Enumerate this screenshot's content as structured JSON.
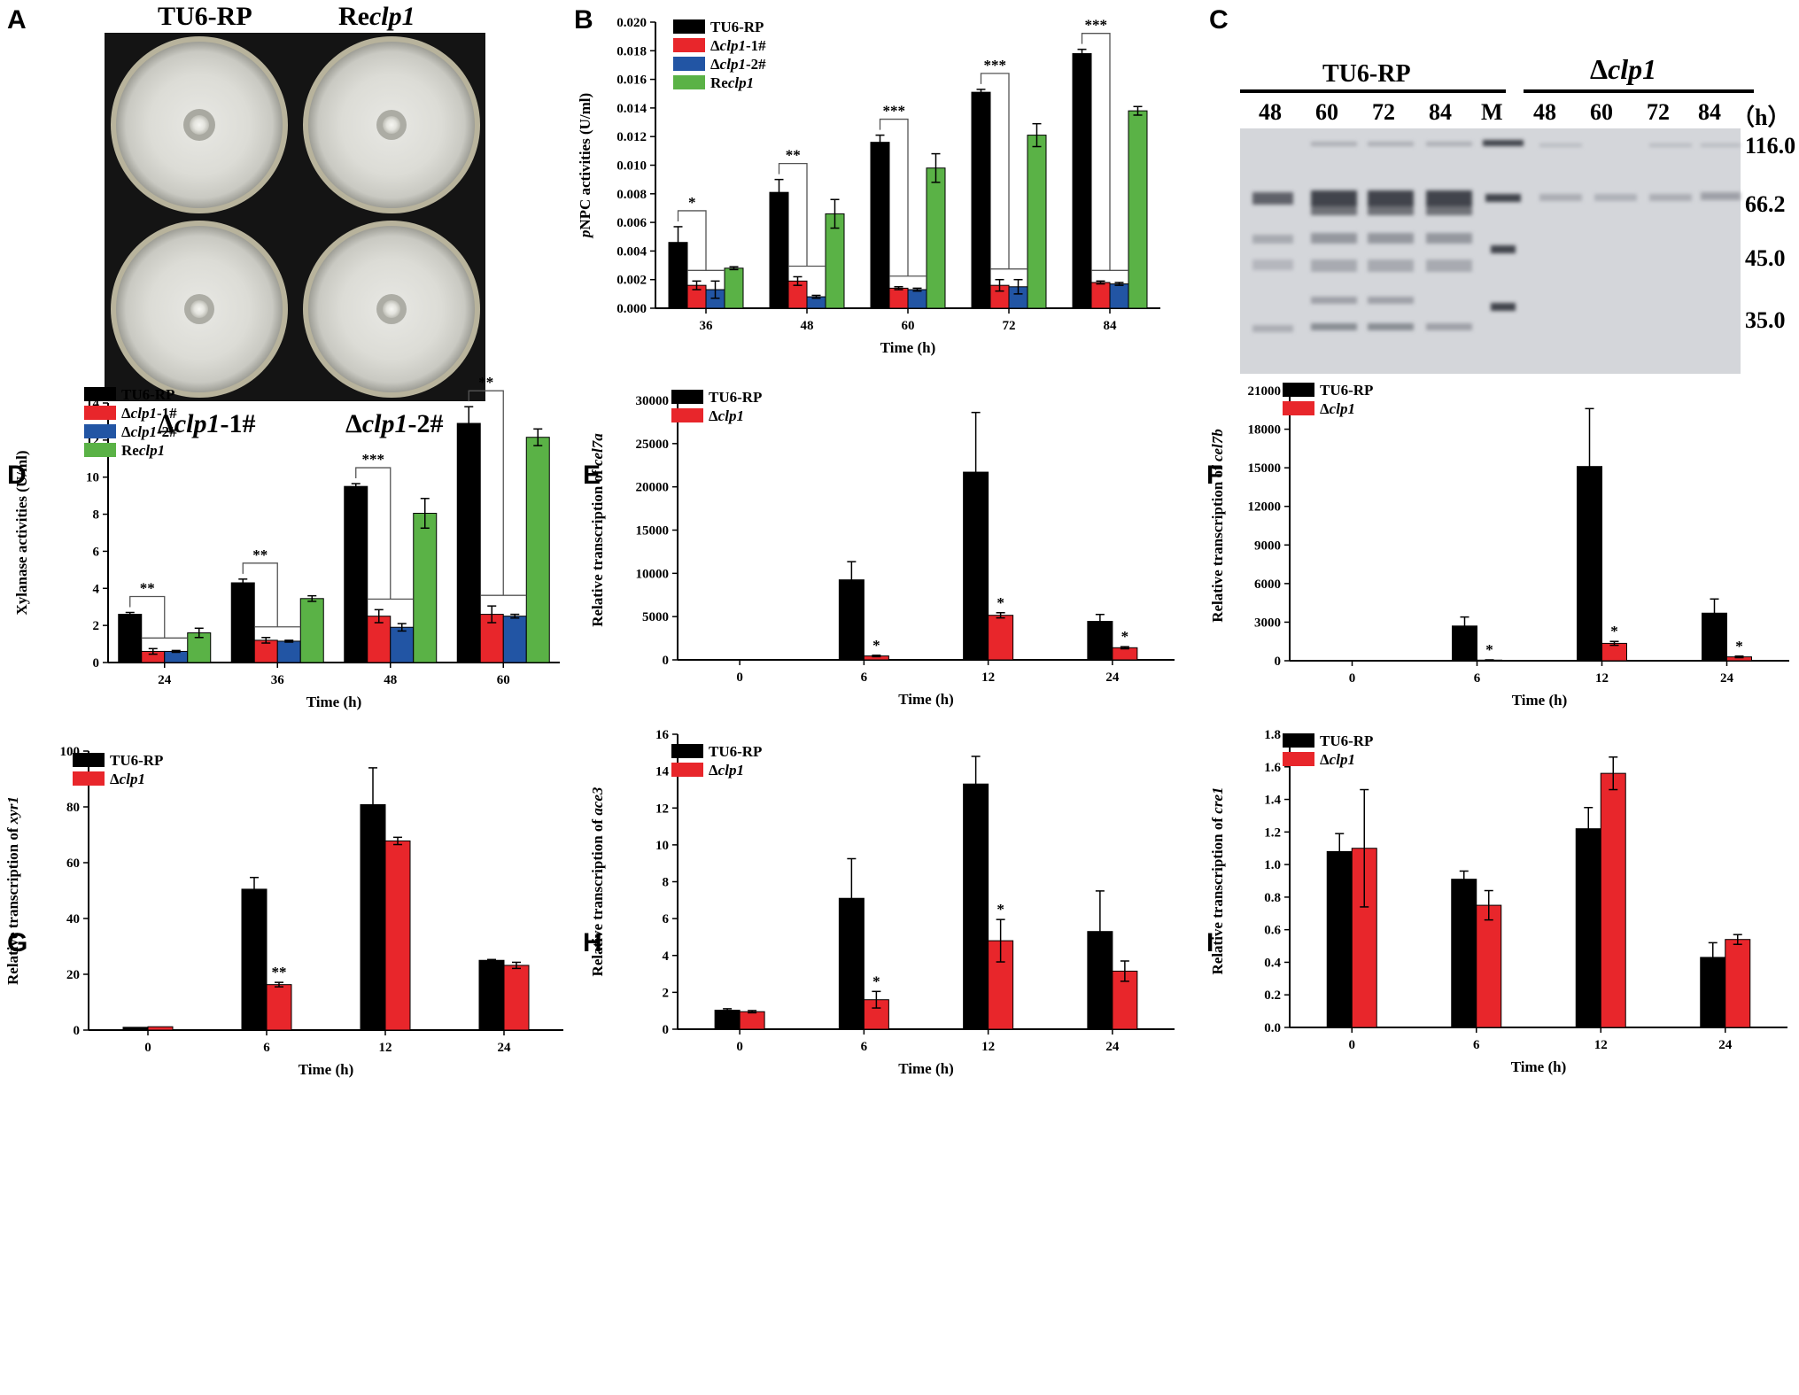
{
  "figure": {
    "panel_letters": [
      "A",
      "B",
      "C",
      "D",
      "E",
      "F",
      "G",
      "H",
      "I"
    ]
  },
  "panel_a": {
    "labels": {
      "top_left": "TU6-RP",
      "top_right_prefix": "Re",
      "top_right_gene": "clp1",
      "bottom_left_prefix": "Δ",
      "bottom_left_gene": "clp1",
      "bottom_left_suffix": "-1#",
      "bottom_right_prefix": "Δ",
      "bottom_right_gene": "clp1",
      "bottom_right_suffix": "-2#"
    }
  },
  "panel_c": {
    "group_left": "TU6-RP",
    "group_right_prefix": "Δ",
    "group_right_gene": "clp1",
    "lanes": [
      "48",
      "60",
      "72",
      "84",
      "M",
      "48",
      "60",
      "72",
      "84"
    ],
    "time_unit": "（h）",
    "markers": [
      "116.0",
      "66.2",
      "45.0",
      "35.0"
    ]
  },
  "colors": {
    "TU6-RP": "#000000",
    "clp1_1": "#e8262b",
    "clp1_2": "#2255a4",
    "reclp1": "#5ab246",
    "dclp1": "#e8262b"
  },
  "chart_data": [
    {
      "panel": "B",
      "type": "bar",
      "categories": [
        "36",
        "48",
        "60",
        "72",
        "84"
      ],
      "xlabel": "Time (h)",
      "ylabel": "pNPC activities (U/ml)",
      "ylim": [
        0,
        0.02
      ],
      "yticks": [
        "0.000",
        "0.002",
        "0.004",
        "0.006",
        "0.008",
        "0.010",
        "0.012",
        "0.014",
        "0.016",
        "0.018",
        "0.020"
      ],
      "series": [
        {
          "name": "TU6-RP",
          "values": [
            0.0046,
            0.0081,
            0.0116,
            0.0151,
            0.0178
          ],
          "err": [
            0.0011,
            0.0009,
            0.0005,
            0.0002,
            0.0003
          ]
        },
        {
          "name": "Δclp1-1#",
          "values": [
            0.0016,
            0.0019,
            0.0014,
            0.0016,
            0.0018
          ],
          "err": [
            0.0003,
            0.0003,
            0.0001,
            0.0004,
            0.0001
          ]
        },
        {
          "name": "Δclp1-2#",
          "values": [
            0.0013,
            0.0008,
            0.0013,
            0.0015,
            0.0017
          ],
          "err": [
            0.0006,
            0.0001,
            0.0001,
            0.0005,
            0.0001
          ]
        },
        {
          "name": "Reclp1",
          "values": [
            0.0028,
            0.0066,
            0.0098,
            0.0121,
            0.0138
          ],
          "err": [
            0.0001,
            0.001,
            0.001,
            0.0008,
            0.0003
          ]
        }
      ],
      "significance": [
        "*",
        "**",
        "***",
        "***",
        "***"
      ],
      "legend": "top-left"
    },
    {
      "panel": "D",
      "type": "bar",
      "categories": [
        "24",
        "36",
        "48",
        "60"
      ],
      "xlabel": "Time (h)",
      "ylabel": "Xylanase activities (U/ml)",
      "ylim": [
        0,
        14
      ],
      "yticks": [
        "0",
        "2",
        "4",
        "6",
        "8",
        "10",
        "12",
        "14"
      ],
      "series": [
        {
          "name": "TU6-RP",
          "values": [
            2.6,
            4.3,
            9.5,
            12.9
          ],
          "err": [
            0.1,
            0.2,
            0.15,
            0.9
          ]
        },
        {
          "name": "Δclp1-1#",
          "values": [
            0.6,
            1.2,
            2.5,
            2.6
          ],
          "err": [
            0.15,
            0.15,
            0.35,
            0.45
          ]
        },
        {
          "name": "Δclp1-2#",
          "values": [
            0.6,
            1.15,
            1.9,
            2.5
          ],
          "err": [
            0.05,
            0.05,
            0.2,
            0.1
          ]
        },
        {
          "name": "Reclp1",
          "values": [
            1.6,
            3.45,
            8.05,
            12.15
          ],
          "err": [
            0.25,
            0.15,
            0.8,
            0.45
          ]
        }
      ],
      "significance": [
        "**",
        "**",
        "***",
        "**"
      ],
      "legend": "top-left"
    },
    {
      "panel": "E",
      "type": "bar",
      "categories": [
        "0",
        "6",
        "12",
        "24"
      ],
      "xlabel": "Time (h)",
      "ylabel": "Relative transcription of cel7a",
      "ylim": [
        0,
        30000
      ],
      "yticks": [
        "0",
        "5000",
        "10000",
        "15000",
        "20000",
        "25000",
        "30000"
      ],
      "series": [
        {
          "name": "TU6-RP",
          "values": [
            0,
            9250,
            21700,
            4450
          ],
          "err": [
            0,
            2100,
            6900,
            800
          ]
        },
        {
          "name": "Δclp1",
          "values": [
            0,
            450,
            5150,
            1400
          ],
          "err": [
            0,
            80,
            300,
            120
          ]
        }
      ],
      "significance": [
        "",
        "*",
        "*",
        "*"
      ],
      "legend": "top-left"
    },
    {
      "panel": "F",
      "type": "bar",
      "categories": [
        "0",
        "6",
        "12",
        "24"
      ],
      "xlabel": "Time (h)",
      "ylabel": "Relative transcription of cel7b",
      "ylim": [
        0,
        21000
      ],
      "yticks": [
        "0",
        "3000",
        "6000",
        "9000",
        "12000",
        "15000",
        "18000",
        "21000"
      ],
      "series": [
        {
          "name": "TU6-RP",
          "values": [
            0,
            2700,
            15100,
            3700
          ],
          "err": [
            0,
            700,
            4500,
            1100
          ]
        },
        {
          "name": "Δclp1",
          "values": [
            0,
            50,
            1350,
            300
          ],
          "err": [
            0,
            20,
            150,
            60
          ]
        }
      ],
      "significance": [
        "",
        "*",
        "*",
        "*"
      ],
      "legend": "top-left"
    },
    {
      "panel": "G",
      "type": "bar",
      "categories": [
        "0",
        "6",
        "12",
        "24"
      ],
      "xlabel": "Time (h)",
      "ylabel": "Relative transcription of xyr1",
      "ylim": [
        0,
        100
      ],
      "yticks": [
        "0",
        "20",
        "40",
        "60",
        "80",
        "100"
      ],
      "series": [
        {
          "name": "TU6-RP",
          "values": [
            1,
            50.5,
            80.8,
            25
          ],
          "err": [
            0,
            4.2,
            13.2,
            0.3
          ]
        },
        {
          "name": "Δclp1",
          "values": [
            1.2,
            16.3,
            67.8,
            23.2
          ],
          "err": [
            0,
            0.8,
            1.3,
            1.1
          ]
        }
      ],
      "significance": [
        "",
        "**",
        "",
        ""
      ],
      "legend": "top-left"
    },
    {
      "panel": "H",
      "type": "bar",
      "categories": [
        "0",
        "6",
        "12",
        "24"
      ],
      "xlabel": "Time (h)",
      "ylabel": "Relative transcription of ace3",
      "ylim": [
        0,
        16
      ],
      "yticks": [
        "0",
        "2",
        "4",
        "6",
        "8",
        "10",
        "12",
        "14",
        "16"
      ],
      "series": [
        {
          "name": "TU6-RP",
          "values": [
            1.03,
            7.1,
            13.3,
            5.3
          ],
          "err": [
            0.08,
            2.15,
            1.5,
            2.2
          ]
        },
        {
          "name": "Δclp1",
          "values": [
            0.95,
            1.6,
            4.8,
            3.15
          ],
          "err": [
            0.06,
            0.45,
            1.15,
            0.55
          ]
        }
      ],
      "significance": [
        "",
        "*",
        "*",
        ""
      ],
      "legend": "top-left"
    },
    {
      "panel": "I",
      "type": "bar",
      "categories": [
        "0",
        "6",
        "12",
        "24"
      ],
      "xlabel": "Time (h)",
      "ylabel": "Relative transcription of cre1",
      "ylim": [
        0,
        1.8
      ],
      "yticks": [
        "0.0",
        "0.2",
        "0.4",
        "0.6",
        "0.8",
        "1.0",
        "1.2",
        "1.4",
        "1.6",
        "1.8"
      ],
      "series": [
        {
          "name": "TU6-RP",
          "values": [
            1.08,
            0.91,
            1.22,
            0.43
          ],
          "err": [
            0.11,
            0.05,
            0.13,
            0.09
          ]
        },
        {
          "name": "Δclp1",
          "values": [
            1.1,
            0.75,
            1.56,
            0.54
          ],
          "err": [
            0.36,
            0.09,
            0.1,
            0.03
          ]
        }
      ],
      "significance": [
        "",
        "",
        "",
        ""
      ],
      "legend": "top-left"
    }
  ]
}
